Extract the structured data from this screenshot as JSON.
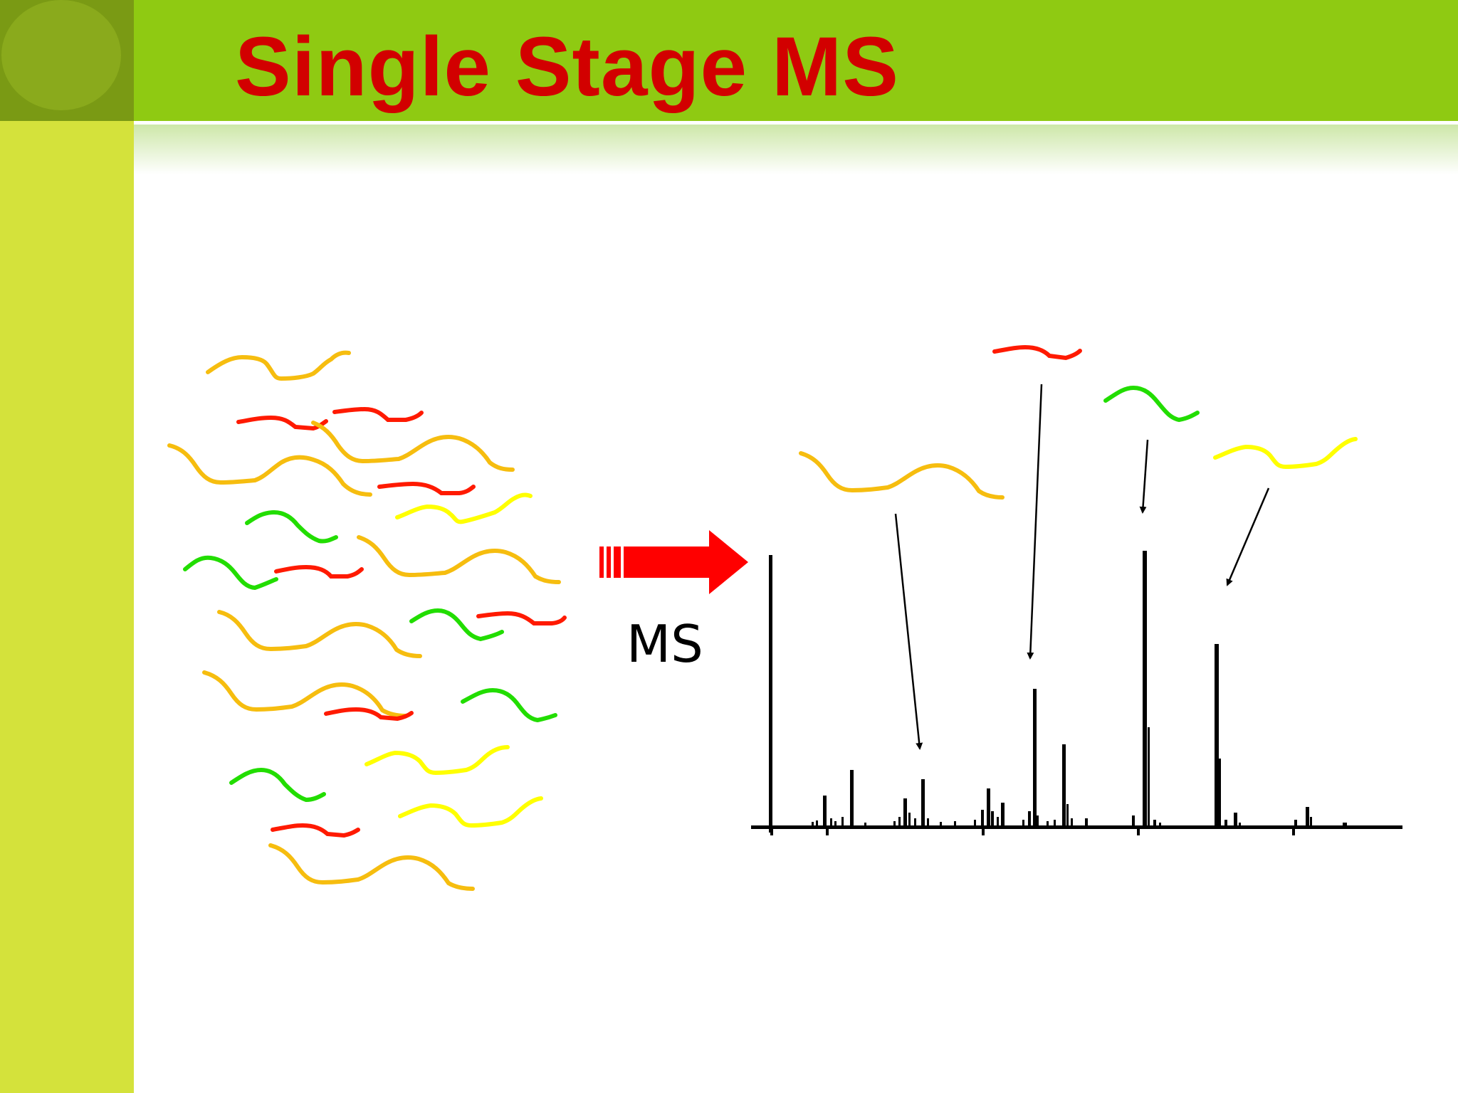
{
  "slide": {
    "title": "Single Stage MS"
  },
  "diagram": {
    "process_label": "MS",
    "colors": {
      "header": "#8fca12",
      "side_bar": "#d4e23b",
      "title": "#d20000",
      "arrow": "#ff0000",
      "peptide_red": "#ff1a00",
      "peptide_orange": "#f6bd0f",
      "peptide_yellow": "#ffff00",
      "peptide_green": "#22dd00"
    }
  }
}
